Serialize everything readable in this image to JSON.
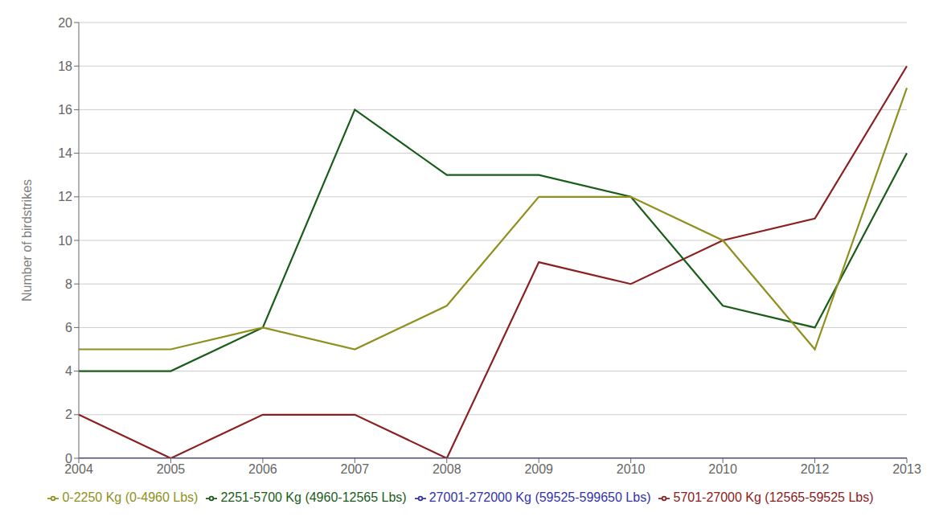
{
  "chart_data": {
    "type": "line",
    "categories": [
      "2004",
      "2005",
      "2006",
      "2007",
      "2008",
      "2009",
      "2010",
      "2010",
      "2012",
      "2013"
    ],
    "series": [
      {
        "name": "27001-272000 Kg (59525-599650 Lbs)",
        "color": "#3333AA",
        "values": [
          0,
          0,
          0,
          0,
          0,
          0,
          0,
          0,
          0,
          0
        ]
      },
      {
        "name": "5701-27000 Kg (12565-59525 Lbs)",
        "color": "#8B2020",
        "values": [
          2,
          0,
          2,
          2,
          0,
          9,
          8,
          10,
          11,
          18
        ]
      },
      {
        "name": "2251-5700 Kg (4960-12565 Lbs)",
        "color": "#1A5C1A",
        "values": [
          4,
          4,
          6,
          16,
          13,
          13,
          12,
          7,
          6,
          14
        ]
      },
      {
        "name": "0-2250 Kg (0-4960 Lbs)",
        "color": "#909020",
        "values": [
          5,
          5,
          6,
          5,
          7,
          12,
          12,
          10,
          5,
          17
        ]
      }
    ],
    "ylabel": "Number of birdstrikes",
    "ylim": [
      0,
      20
    ],
    "yticks": [
      0,
      2,
      4,
      6,
      8,
      10,
      12,
      14,
      16,
      18,
      20
    ],
    "grid": true,
    "legend": "bottom"
  }
}
